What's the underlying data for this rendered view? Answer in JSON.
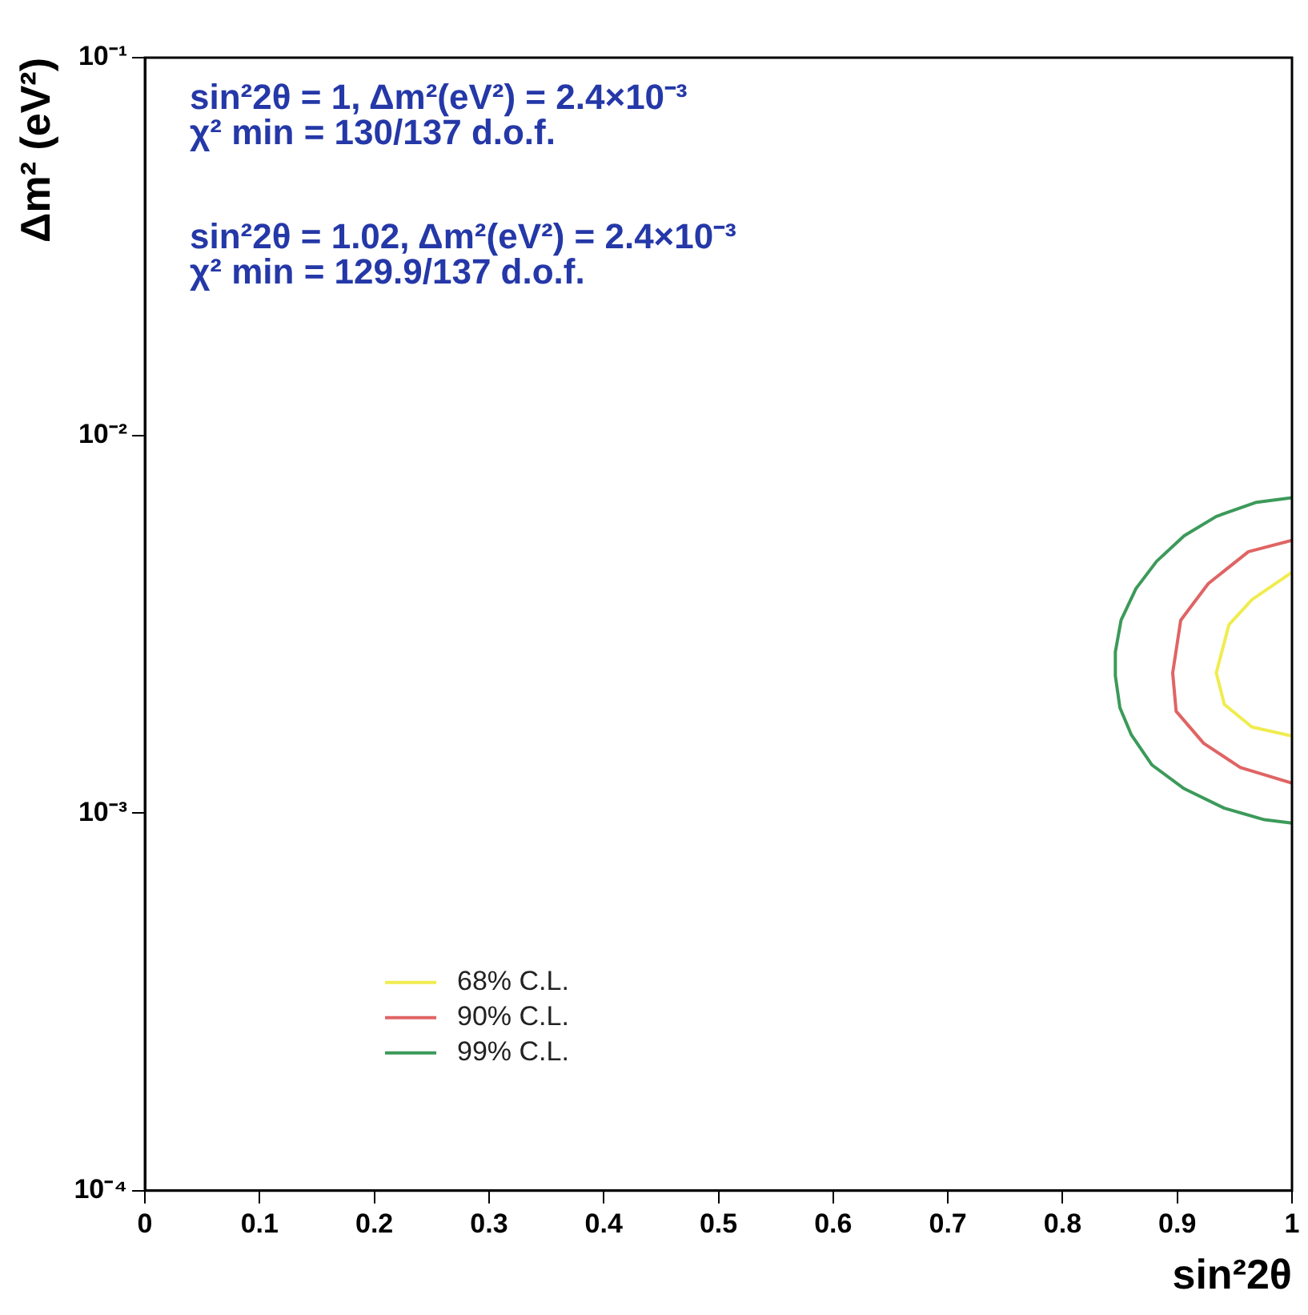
{
  "chart_data": {
    "type": "line",
    "xlabel": "sin²2θ",
    "ylabel": "Δm² (eV²)",
    "annotations": [
      "sin²2θ = 1, Δm²(eV²) = 2.4×10⁻³",
      "χ² min = 130/137 d.o.f.",
      "sin²2θ = 1.02, Δm²(eV²) = 2.4×10⁻³",
      "χ² min = 129.9/137 d.o.f."
    ],
    "series": [
      {
        "name": "68% C.L.",
        "color": "#f0ec50",
        "x": [
          1.0,
          0.965,
          0.945,
          0.934,
          0.941,
          0.965,
          1.0
        ],
        "values": [
          0.00434,
          0.00367,
          0.00315,
          0.00235,
          0.00194,
          0.00169,
          0.0016
        ]
      },
      {
        "name": "90% C.L.",
        "color": "#e06464",
        "x": [
          1.0,
          0.962,
          0.927,
          0.903,
          0.896,
          0.899,
          0.923,
          0.955,
          1.0
        ],
        "values": [
          0.00527,
          0.00492,
          0.00405,
          0.00324,
          0.00235,
          0.00186,
          0.00153,
          0.00132,
          0.0012
        ]
      },
      {
        "name": "99% C.L.",
        "color": "#3c9a5a",
        "x": [
          1.0,
          0.969,
          0.934,
          0.906,
          0.882,
          0.864,
          0.851,
          0.846,
          0.846,
          0.85,
          0.86,
          0.878,
          0.906,
          0.941,
          0.976,
          1.0
        ],
        "values": [
          0.00684,
          0.00665,
          0.0061,
          0.00542,
          0.00464,
          0.00393,
          0.00324,
          0.00267,
          0.00231,
          0.0019,
          0.00161,
          0.00134,
          0.00116,
          0.00103,
          0.00096,
          0.00094
        ]
      }
    ],
    "xlim": [
      0,
      1
    ],
    "xticks": [
      0,
      0.1,
      0.2,
      0.3,
      0.4,
      0.5,
      0.6,
      0.7,
      0.8,
      0.9,
      1
    ],
    "log": "y",
    "ylim": [
      0.0001,
      0.1
    ],
    "yticks": [
      {
        "value": 0.0001,
        "label": "10⁻⁴"
      },
      {
        "value": 0.001,
        "label": "10⁻³"
      },
      {
        "value": 0.01,
        "label": "10⁻²"
      },
      {
        "value": 0.1,
        "label": "10⁻¹"
      }
    ],
    "grid": false,
    "legend": "bottom left",
    "marker": "none",
    "line_style": "solid"
  }
}
